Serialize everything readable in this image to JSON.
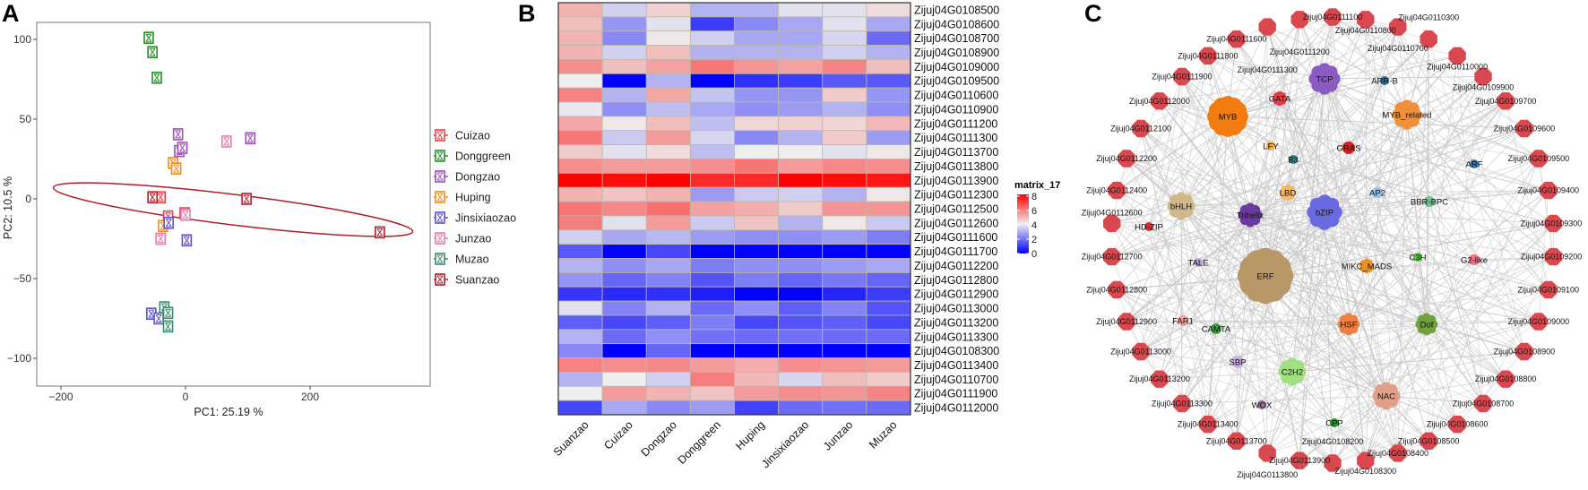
{
  "panel_labels": {
    "a": "A",
    "b": "B",
    "c": "C"
  },
  "chart_data": [
    {
      "type": "scatter",
      "panel": "A",
      "xlabel": "PC1:  25.19 %",
      "ylabel": "PC2:  10.5 %",
      "xlim": [
        -239,
        393
      ],
      "ylim": [
        -117,
        110
      ],
      "xticks": [
        -200,
        0,
        200
      ],
      "yticks": [
        100,
        50,
        0,
        -50,
        -100
      ],
      "grid": false,
      "legend_position": "right",
      "ellipse_group": "Suanzao",
      "series": [
        {
          "name": "Cuizao",
          "color": "#e8414a",
          "points": [
            [
              -40,
              1
            ],
            [
              -28,
              -11
            ],
            [
              -1.5,
              -9
            ]
          ]
        },
        {
          "name": "Donggreen",
          "color": "#2a8a2a",
          "points": [
            [
              -59,
              101
            ],
            [
              -53,
              92
            ],
            [
              -46,
              76
            ]
          ]
        },
        {
          "name": "Dongzao",
          "color": "#9a4db0",
          "points": [
            [
              -12,
              40.5
            ],
            [
              -10,
              30
            ],
            [
              -5,
              32
            ],
            [
              104,
              38
            ]
          ]
        },
        {
          "name": "Huping",
          "color": "#f08a1a",
          "points": [
            [
              -20,
              22.5
            ],
            [
              -15,
              19
            ],
            [
              -36,
              -17
            ]
          ]
        },
        {
          "name": "Jinsixiaozao",
          "color": "#5a52c8",
          "points": [
            [
              -27,
              -15
            ],
            [
              2,
              -26
            ],
            [
              -55,
              -72
            ],
            [
              -43,
              -75
            ]
          ]
        },
        {
          "name": "Junzao",
          "color": "#e87ab0",
          "points": [
            [
              66,
              36
            ],
            [
              0,
              -10
            ],
            [
              -40,
              -25
            ]
          ]
        },
        {
          "name": "Muzao",
          "color": "#3a8a6a",
          "points": [
            [
              -34,
              -68
            ],
            [
              -28,
              -71.5
            ],
            [
              -28,
              -80
            ]
          ]
        },
        {
          "name": "Suanzao",
          "color": "#b01c2a",
          "points": [
            [
              -53,
              1
            ],
            [
              98,
              0
            ],
            [
              312,
              -21
            ]
          ]
        }
      ]
    },
    {
      "type": "heatmap",
      "panel": "B",
      "legend_title": "matrix_17",
      "scale": [
        0,
        8
      ],
      "legend_ticks": [
        8,
        6,
        4,
        2,
        0
      ],
      "colors": {
        "low": "#0000ff",
        "mid": "#eeeeee",
        "high": "#ff0000"
      },
      "columns": [
        "Suanzao",
        "Cuizao",
        "Dongzao",
        "Donggreen",
        "Huping",
        "Jinsixiaozao",
        "Junzao",
        "Muzao"
      ],
      "rows": [
        "Zijuj04G0108500",
        "Zijuj04G0108600",
        "Zijuj04G0108700",
        "Zijuj04G0108900",
        "Zijuj04G0109000",
        "Zijuj04G0109500",
        "Zijuj04G0110600",
        "Zijuj04G0110900",
        "Zijuj04G0111200",
        "Zijuj04G0111300",
        "Zijuj04G0113700",
        "Zijuj04G0113800",
        "Zijuj04G0113900",
        "Zijuj04G0112300",
        "Zijuj04G0112500",
        "Zijuj04G0112600",
        "Zijuj04G0111600",
        "Zijuj04G0111700",
        "Zijuj04G0112200",
        "Zijuj04G0112800",
        "Zijuj04G0112900",
        "Zijuj04G0113000",
        "Zijuj04G0113200",
        "Zijuj04G0113300",
        "Zijuj04G0108300",
        "Zijuj04G0113400",
        "Zijuj04G0110700",
        "Zijuj04G0111900",
        "Zijuj04G0112000"
      ],
      "values": [
        [
          5,
          3.5,
          4.5,
          3,
          3,
          3.8,
          3.8,
          4.3
        ],
        [
          4.8,
          2.5,
          3.8,
          1,
          2.3,
          2.8,
          3.8,
          2.8
        ],
        [
          5,
          2.3,
          4.1,
          3.5,
          2.8,
          2.8,
          3.6,
          1.8
        ],
        [
          5,
          3.5,
          4.8,
          3,
          3,
          3,
          3.5,
          3
        ],
        [
          5.6,
          4.8,
          5.3,
          6,
          5.5,
          5.3,
          5.8,
          4.8
        ],
        [
          4,
          0,
          3,
          0,
          0.8,
          1,
          1.5,
          1.5
        ],
        [
          5.8,
          3,
          5.2,
          3.3,
          2.5,
          2.5,
          4.6,
          2.5
        ],
        [
          3.9,
          2.4,
          3.2,
          2.8,
          2.4,
          2.6,
          3,
          2.4
        ],
        [
          5.2,
          4.1,
          4.8,
          3.2,
          4.4,
          4.5,
          4.4,
          4.9
        ],
        [
          6,
          3.4,
          5.4,
          3.6,
          2.3,
          3,
          4.6,
          2.6
        ],
        [
          4.6,
          3.8,
          4.3,
          3.2,
          4,
          4,
          3.8,
          4.1
        ],
        [
          5.6,
          5.4,
          5.4,
          5.6,
          6,
          5.4,
          5.7,
          5.6
        ],
        [
          8,
          7.8,
          8,
          7.3,
          7.3,
          8,
          7.8,
          7.6
        ],
        [
          5,
          4.7,
          5,
          2.6,
          3.4,
          3.5,
          3,
          4.1
        ],
        [
          6,
          5.7,
          6.1,
          5.3,
          5.1,
          4.6,
          5.5,
          5.5
        ],
        [
          5.9,
          3.8,
          5.4,
          3.4,
          4.7,
          3,
          4.1,
          3.4
        ],
        [
          3.5,
          2.8,
          3.1,
          2.6,
          2.4,
          2.4,
          2.6,
          2.1
        ],
        [
          1.5,
          0,
          1.2,
          0,
          0,
          0,
          0,
          0
        ],
        [
          3,
          2.4,
          2.8,
          2.1,
          2.4,
          2.4,
          2.6,
          2.8
        ],
        [
          2.5,
          1.7,
          2.2,
          1.4,
          2.1,
          1.7,
          2,
          1.7
        ],
        [
          0.9,
          0.7,
          0.8,
          0.5,
          0,
          0,
          0.6,
          1
        ],
        [
          3.8,
          2.2,
          3,
          1.8,
          2.4,
          1.6,
          2.2,
          1.4
        ],
        [
          1.6,
          1.2,
          1.6,
          2.1,
          1.2,
          1.4,
          1.6,
          1.2
        ],
        [
          3,
          1.8,
          2.4,
          1.9,
          1.8,
          1.9,
          1.8,
          1.8
        ],
        [
          2.3,
          0,
          1.7,
          0,
          0,
          0,
          0,
          0
        ],
        [
          5.8,
          5.6,
          5.7,
          5.4,
          5.1,
          5.6,
          5.5,
          5.4
        ],
        [
          3,
          4,
          3.5,
          5.9,
          4.9,
          3.6,
          4.8,
          4.6
        ],
        [
          4,
          5.4,
          5,
          4.7,
          5.4,
          5.6,
          5.5,
          5.8
        ],
        [
          1.2,
          2.8,
          2.3,
          2.6,
          1.1,
          1.8,
          1.9,
          1.8
        ]
      ]
    },
    {
      "type": "network",
      "panel": "C",
      "gene_node_color": "#d9484e",
      "gene_nodes": [
        "Zijuj04G0111100",
        "Zijuj04G0110800",
        "Zijuj04G0110700",
        "Zijuj04G0110300",
        "Zijuj04G0110000",
        "Zijuj04G0109900",
        "Zijuj04G0109700",
        "Zijuj04G0109600",
        "Zijuj04G0109500",
        "Zijuj04G0109400",
        "Zijuj04G0109300",
        "Zijuj04G0109200",
        "Zijuj04G0109100",
        "Zijuj04G0109000",
        "Zijuj04G0108900",
        "Zijuj04G0108800",
        "Zijuj04G0108700",
        "Zijuj04G0108600",
        "Zijuj04G0108500",
        "Zijuj04G0108400",
        "Zijuj04G0108300",
        "Zijuj04G0108200",
        "Zijuj04G0113900",
        "Zijuj04G0113800",
        "Zijuj04G0113700",
        "Zijuj04G0113400",
        "Zijuj04G0113300",
        "Zijuj04G0113200",
        "Zijuj04G0113000",
        "Zijuj04G0112900",
        "Zijuj04G0112800",
        "Zijuj04G0112700",
        "Zijuj04G0112600",
        "Zijuj04G0112400",
        "Zijuj04G0112200",
        "Zijuj04G0112100",
        "Zijuj04G0112000",
        "Zijuj04G0111900",
        "Zijuj04G0111800",
        "Zijuj04G0111600",
        "Zijuj04G0111300",
        "Zijuj04G0111200"
      ],
      "tf_nodes": [
        {
          "name": "TCP",
          "color": "#8a5cc0"
        },
        {
          "name": "GATA",
          "color": "#e0404a"
        },
        {
          "name": "ARR-B",
          "color": "#2f6fa0"
        },
        {
          "name": "MYB",
          "color": "#f27c10"
        },
        {
          "name": "MYB_related",
          "color": "#f0903a"
        },
        {
          "name": "LFY",
          "color": "#f0b040"
        },
        {
          "name": "B3",
          "color": "#2a8a8a"
        },
        {
          "name": "GRAS",
          "color": "#e01a20"
        },
        {
          "name": "ARF",
          "color": "#3a7ab0"
        },
        {
          "name": "bHLH",
          "color": "#d0b88a"
        },
        {
          "name": "Trihelix",
          "color": "#6a3aa0"
        },
        {
          "name": "LBD",
          "color": "#f8b860"
        },
        {
          "name": "bZIP",
          "color": "#6a6ae0"
        },
        {
          "name": "AP2",
          "color": "#90c0e8"
        },
        {
          "name": "BBR-BPC",
          "color": "#70c090"
        },
        {
          "name": "HD-ZIP",
          "color": "#e03030"
        },
        {
          "name": "TALE",
          "color": "#b8a0d8"
        },
        {
          "name": "ERF",
          "color": "#b89868"
        },
        {
          "name": "MIKC_MADS",
          "color": "#f09020"
        },
        {
          "name": "C3H",
          "color": "#60c040"
        },
        {
          "name": "G2-like",
          "color": "#f07080"
        },
        {
          "name": "FAR1",
          "color": "#f0a0a0"
        },
        {
          "name": "CAMTA",
          "color": "#40a040"
        },
        {
          "name": "HSF",
          "color": "#f08040"
        },
        {
          "name": "Dof",
          "color": "#70a040"
        },
        {
          "name": "SBP",
          "color": "#c8b0e0"
        },
        {
          "name": "C2H2",
          "color": "#a0e080"
        },
        {
          "name": "NAC",
          "color": "#e0a088"
        },
        {
          "name": "WOX",
          "color": "#907090"
        },
        {
          "name": "CPP",
          "color": "#2a902a"
        }
      ],
      "edge_color": "#c8c8c8"
    }
  ]
}
